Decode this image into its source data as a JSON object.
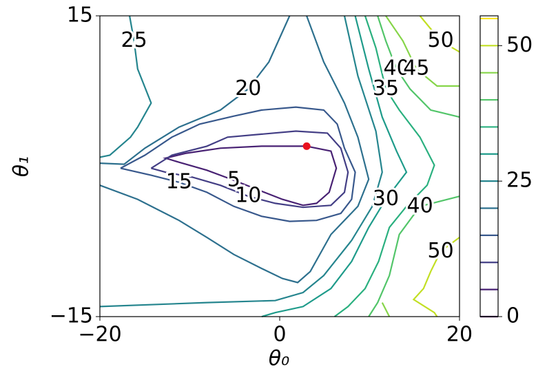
{
  "chart_data": {
    "type": "contour",
    "x_label": "θ₀",
    "y_label": "θ₁",
    "xlim": [
      -20,
      20
    ],
    "ylim": [
      -15,
      15
    ],
    "xticks": [
      {
        "value": -20,
        "label": "−20"
      },
      0,
      20
    ],
    "yticks": [
      {
        "value": -15,
        "label": "−15"
      },
      15
    ],
    "contours": [
      {
        "level": 5,
        "color": "#482173",
        "x": [
          3.0,
          5.7,
          6.3,
          5.5,
          4.1,
          2.6,
          0.3,
          -2.0,
          -5.1,
          -8.1,
          -11.2,
          -12.7,
          -10.4,
          -6.6,
          -2.0,
          3.0
        ],
        "y": [
          2.0,
          1.5,
          -0.2,
          -2.6,
          -3.7,
          -3.9,
          -3.3,
          -2.5,
          -1.4,
          -0.4,
          0.4,
          0.8,
          1.3,
          1.8,
          2.0,
          2.0
        ]
      },
      {
        "level": 10,
        "color": "#433e85",
        "x": [
          -14.3,
          -12.0,
          -8.1,
          -5.8,
          -2.0,
          1.8,
          5.3,
          6.8,
          7.6,
          7.2,
          5.7,
          2.6,
          -0.5,
          -3.5,
          -6.6,
          -9.7,
          -12.7,
          -14.3
        ],
        "y": [
          -0.2,
          1.1,
          2.0,
          2.9,
          3.2,
          3.5,
          3.3,
          1.8,
          -0.6,
          -2.6,
          -3.9,
          -4.1,
          -3.7,
          -3.0,
          -1.9,
          -1.1,
          -0.6,
          -0.2
        ]
      },
      {
        "level": 15,
        "color": "#38588c",
        "x": [
          -17.7,
          -15.0,
          -12.0,
          -8.9,
          -5.1,
          -2.0,
          1.8,
          4.9,
          6.4,
          7.2,
          8.4,
          8.0,
          6.8,
          4.1,
          1.1,
          -2.0,
          -5.1,
          -8.1,
          -11.2,
          -14.3,
          -17.7
        ],
        "y": [
          -0.2,
          1.1,
          2.9,
          4.2,
          5.0,
          5.6,
          5.9,
          5.6,
          4.2,
          1.8,
          -0.6,
          -3.3,
          -4.7,
          -5.4,
          -5.5,
          -5.0,
          -4.0,
          -2.6,
          -1.6,
          -0.9,
          -0.2
        ]
      },
      {
        "level": 20,
        "color": "#2d708e",
        "x": [
          -20,
          -17.3,
          -15.0,
          -11.2,
          -6.6,
          -3.5,
          -1.2,
          1.1,
          null,
          -20,
          -15.8,
          -11.2,
          -8.1,
          -5.1,
          -2.0,
          0.3,
          2.0,
          3.4,
          5.7,
          8.7,
          9.9,
          8.7,
          7.2,
          4.9,
          3.0
        ],
        "y": [
          0.3,
          0.2,
          1.8,
          3.9,
          5.6,
          7.7,
          10.4,
          15,
          null,
          -1.9,
          -3.3,
          -5.4,
          -7.1,
          -8.8,
          -10.2,
          -11.2,
          -11.6,
          -10.5,
          -6.8,
          -4.0,
          -1.3,
          2.9,
          6.3,
          10.4,
          15
        ]
      },
      {
        "level": 25,
        "color": "#25858e",
        "x": [
          -16.7,
          -16.2,
          -15.8,
          -14.3,
          -15.8,
          -16.6,
          -18.9,
          -20,
          null,
          -20,
          -8.1,
          -0.5,
          2.6,
          4.9,
          8.0,
          10.3,
          11.4,
          10.7,
          8.7,
          7.2
        ],
        "y": [
          15,
          12.5,
          9.7,
          6.3,
          3.9,
          2.9,
          1.1,
          0.9,
          null,
          -14.0,
          -13.6,
          -13.4,
          -12.6,
          -10.9,
          -7.4,
          -4.0,
          -0.6,
          3.5,
          9.0,
          15
        ]
      },
      {
        "level": 30,
        "color": "#1e9b8a",
        "x": [
          8.4,
          9.9,
          11.4,
          13.0,
          14.1,
          11.8,
          9.9,
          8.0,
          5.7,
          2.6,
          -0.5,
          -2.0
        ],
        "y": [
          15,
          9.7,
          4.9,
          1.5,
          -0.6,
          -3.3,
          -6.1,
          -9.5,
          -12.2,
          -14.0,
          -14.6,
          -15
        ]
      },
      {
        "level": 35,
        "color": "#2ab07f",
        "x": [
          9.5,
          10.7,
          11.8,
          13.3,
          15.6,
          17.2,
          16.4,
          14.1,
          12.2,
          11.0,
          9.5,
          7.6,
          6.1
        ],
        "y": [
          15,
          11.8,
          7.7,
          5.6,
          2.9,
          0.1,
          -1.9,
          -4.0,
          -6.1,
          -9.5,
          -12.2,
          -14.0,
          -15
        ]
      },
      {
        "level": 40,
        "color": "#52c569",
        "x": [
          10.9,
          11.8,
          13.0,
          14.5,
          16.8,
          20,
          null,
          20,
          15.6,
          13.3,
          12.2,
          10.9,
          9.9
        ],
        "y": [
          15,
          12.5,
          9.7,
          7.7,
          5.6,
          4.9,
          null,
          -3.0,
          -4.0,
          -6.8,
          -10.9,
          -13.6,
          -15
        ]
      },
      {
        "level": 45,
        "color": "#86d549",
        "x": [
          11.8,
          13.7,
          15.2,
          17.5,
          20,
          null,
          11.4,
          12.2
        ],
        "y": [
          15,
          12.5,
          9.7,
          8.0,
          8.0,
          null,
          -13.6,
          -15
        ]
      },
      {
        "level": 50,
        "color": "#c2df23",
        "x": [
          15.6,
          17.9,
          20,
          null,
          20,
          17.9,
          16.8,
          16.0,
          14.9,
          17.2,
          17.5
        ],
        "y": [
          15,
          12.5,
          11.4,
          null,
          -7.1,
          -8.5,
          -10.5,
          -12.2,
          -13.3,
          -14.6,
          -15
        ]
      }
    ],
    "point": {
      "x": 3.0,
      "y": 2.0,
      "color": "#e8101e"
    },
    "colorbar": {
      "lim": [
        0,
        55.5
      ],
      "ticks": [
        0,
        25,
        50
      ],
      "levels": [
        0,
        5,
        10,
        15,
        20,
        25,
        30,
        35,
        40,
        45,
        50,
        55
      ],
      "colors": [
        "#440154",
        "#482173",
        "#433e85",
        "#38588c",
        "#2d708e",
        "#25858e",
        "#1e9b8a",
        "#2ab07f",
        "#52c569",
        "#86d549",
        "#c2df23",
        "#fde725"
      ]
    }
  }
}
